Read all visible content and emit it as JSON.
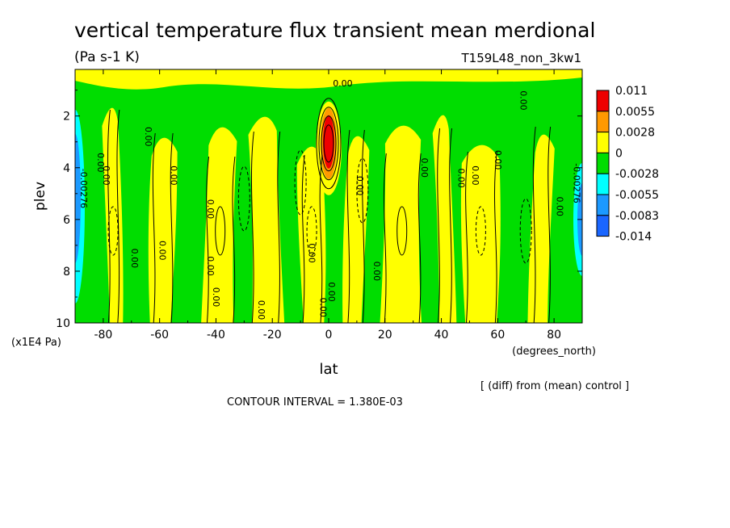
{
  "chart_data": {
    "type": "heatmap",
    "title": "vertical temperature flux transient mean merdional",
    "units": "(Pa s-1 K)",
    "experiment": "T159L48_non_3kw1",
    "xlabel": "lat",
    "x_units": "(degrees_north)",
    "ylabel": "plev",
    "y_units": "(x1E4 Pa)",
    "xlim": [
      -90,
      90
    ],
    "ylim": [
      10,
      0.2
    ],
    "x_ticks": [
      -80,
      -60,
      -40,
      -20,
      0,
      20,
      40,
      60,
      80
    ],
    "x_tick_labels": [
      "-80",
      "-60",
      "-40",
      "-20",
      "0",
      "20",
      "40",
      "60",
      "80"
    ],
    "y_ticks": [
      2,
      4,
      6,
      8,
      10
    ],
    "y_tick_labels": [
      "2",
      "4",
      "6",
      "8",
      "10"
    ],
    "color_levels": [
      "0.011",
      "0.0055",
      "0.0028",
      "0",
      "-0.0028",
      "-0.0055",
      "-0.0083",
      "-0.014"
    ],
    "color_fills": [
      "#ee0000",
      "#ff9900",
      "#ffff00",
      "#00dd00",
      "#00ffff",
      "#1c99ff",
      "#1a66ff"
    ],
    "contour_label": "0.00",
    "edge_label": "-0.00276",
    "note": "[ (diff) from (mean) control ]",
    "contour_interval": "CONTOUR INTERVAL = 1.380E-03",
    "yellow_bands": [
      [
        -79,
        -74
      ],
      [
        -63,
        -55
      ],
      [
        -44,
        -33
      ],
      [
        -28,
        -17
      ],
      [
        -10,
        -2
      ],
      [
        6,
        13
      ],
      [
        19,
        33
      ],
      [
        38,
        44
      ],
      [
        48,
        60
      ],
      [
        72,
        79
      ]
    ],
    "features": {
      "red_core": {
        "lat": 0,
        "plev": 3.0
      },
      "south_blue_edge": {
        "lat": -88,
        "plev": 5.5
      },
      "north_blue_edge": {
        "lat": 88,
        "plev": 6.0
      }
    }
  }
}
